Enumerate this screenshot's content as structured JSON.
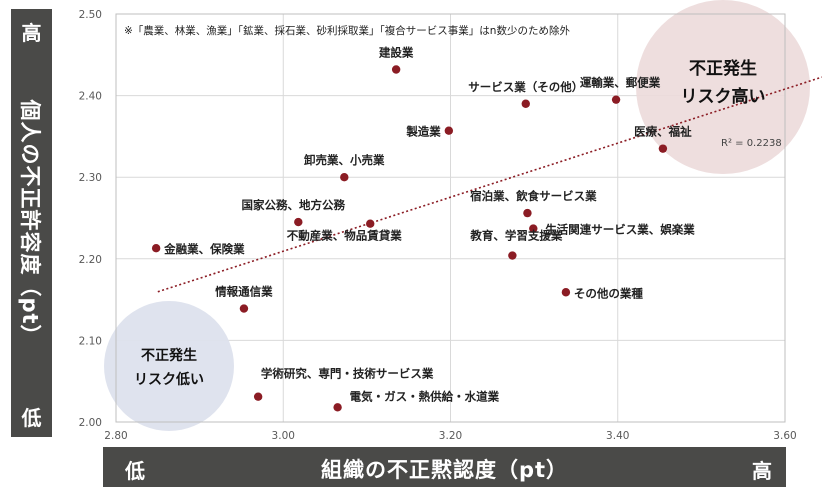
{
  "chart_data": {
    "type": "scatter",
    "xlabel": "組織の不正黙認度（pt）",
    "ylabel": "個人の不正許容度（pt）",
    "xlim": [
      2.8,
      3.6
    ],
    "ylim": [
      2.0,
      2.5
    ],
    "xticks": [
      "2.80",
      "3.00",
      "3.20",
      "3.40",
      "3.60"
    ],
    "yticks": [
      "2.50",
      "2.40",
      "2.30",
      "2.20",
      "2.10",
      "2.00"
    ],
    "x_low_label": "低",
    "x_high_label": "高",
    "y_high_label": "高",
    "y_low_label": "低",
    "note": "※「農業、林業、漁業」「鉱業、採石業、砂利採取業」「複合サービス事業」はn数少のため除外",
    "high_risk_label": [
      "不正発生",
      "リスク高い"
    ],
    "low_risk_label": [
      "不正発生",
      "リスク低い"
    ],
    "trendline": {
      "r2_label": "R² = 0.2238",
      "y_at_xmin": 2.143,
      "y_at_xmax": 2.408
    },
    "points": [
      {
        "label": "建設業",
        "x": 3.135,
        "y": 2.432
      },
      {
        "label": "運輸業、郵便業",
        "x": 3.398,
        "y": 2.395
      },
      {
        "label": "サービス業（その他）",
        "x": 3.29,
        "y": 2.39
      },
      {
        "label": "製造業",
        "x": 3.198,
        "y": 2.357
      },
      {
        "label": "医療、福祉",
        "x": 3.454,
        "y": 2.335
      },
      {
        "label": "卸売業、小売業",
        "x": 3.073,
        "y": 2.3
      },
      {
        "label": "国家公務、地方公務",
        "x": 3.018,
        "y": 2.245
      },
      {
        "label": "不動産業、物品賃貸業",
        "x": 3.104,
        "y": 2.243
      },
      {
        "label": "宿泊業、飲食サービス業",
        "x": 3.292,
        "y": 2.256
      },
      {
        "label": "生活関連サービス業、娯楽業",
        "x": 3.299,
        "y": 2.237
      },
      {
        "label": "金融業、保険業",
        "x": 2.848,
        "y": 2.213
      },
      {
        "label": "教育、学習支援業",
        "x": 3.274,
        "y": 2.204
      },
      {
        "label": "その他の業種",
        "x": 3.338,
        "y": 2.159
      },
      {
        "label": "情報通信業",
        "x": 2.953,
        "y": 2.139
      },
      {
        "label": "学術研究、専門・技術サービス業",
        "x": 2.97,
        "y": 2.031
      },
      {
        "label": "電気・ガス・熱供給・水道業",
        "x": 3.065,
        "y": 2.018
      }
    ]
  }
}
